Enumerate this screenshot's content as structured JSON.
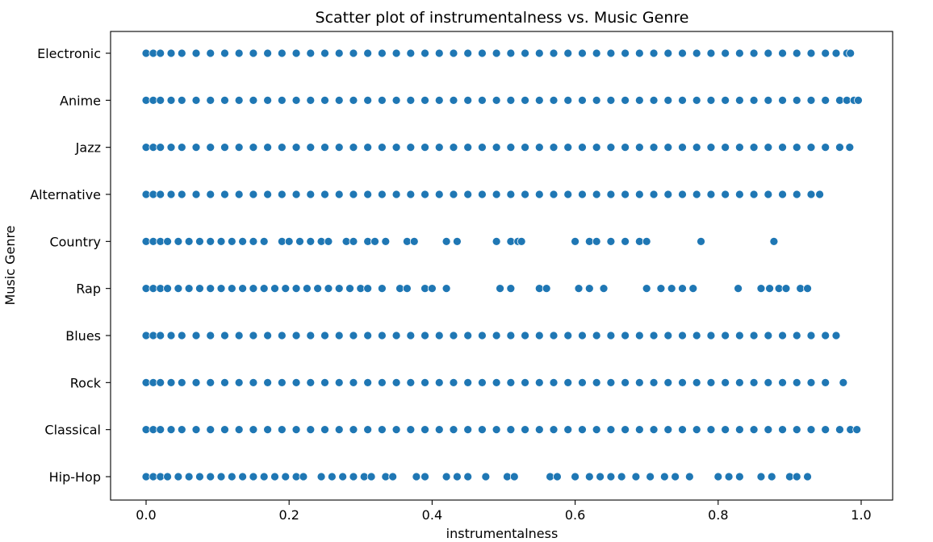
{
  "chart_data": {
    "type": "scatter",
    "title": "Scatter plot of instrumentalness vs. Music Genre",
    "xlabel": "instrumentalness",
    "ylabel": "Music Genre",
    "xlim": [
      -0.05,
      1.045
    ],
    "xticks": [
      0.0,
      0.2,
      0.4,
      0.6,
      0.8,
      1.0
    ],
    "xtick_labels": [
      "0.0",
      "0.2",
      "0.4",
      "0.6",
      "0.8",
      "1.0"
    ],
    "categories": [
      "Electronic",
      "Anime",
      "Jazz",
      "Alternative",
      "Country",
      "Rap",
      "Blues",
      "Rock",
      "Classical",
      "Hip-Hop"
    ],
    "grid": false,
    "legend": "none",
    "marker_color": "#1f77b4",
    "series": [
      {
        "category": "Electronic",
        "x": [
          0.0,
          0.01,
          0.02,
          0.035,
          0.05,
          0.07,
          0.09,
          0.11,
          0.13,
          0.15,
          0.17,
          0.19,
          0.21,
          0.23,
          0.25,
          0.27,
          0.29,
          0.31,
          0.33,
          0.35,
          0.37,
          0.39,
          0.41,
          0.43,
          0.45,
          0.47,
          0.49,
          0.51,
          0.53,
          0.55,
          0.57,
          0.59,
          0.61,
          0.63,
          0.65,
          0.67,
          0.69,
          0.71,
          0.73,
          0.75,
          0.77,
          0.79,
          0.81,
          0.83,
          0.85,
          0.87,
          0.89,
          0.91,
          0.93,
          0.95,
          0.965,
          0.98,
          0.985
        ]
      },
      {
        "category": "Anime",
        "x": [
          0.0,
          0.01,
          0.02,
          0.035,
          0.05,
          0.07,
          0.09,
          0.11,
          0.13,
          0.15,
          0.17,
          0.19,
          0.21,
          0.23,
          0.25,
          0.27,
          0.29,
          0.31,
          0.33,
          0.35,
          0.37,
          0.39,
          0.41,
          0.43,
          0.45,
          0.47,
          0.49,
          0.51,
          0.53,
          0.55,
          0.57,
          0.59,
          0.61,
          0.63,
          0.65,
          0.67,
          0.69,
          0.71,
          0.73,
          0.75,
          0.77,
          0.79,
          0.81,
          0.83,
          0.85,
          0.87,
          0.89,
          0.91,
          0.93,
          0.95,
          0.97,
          0.98,
          0.99,
          0.996
        ]
      },
      {
        "category": "Jazz",
        "x": [
          0.0,
          0.01,
          0.02,
          0.035,
          0.05,
          0.07,
          0.09,
          0.11,
          0.13,
          0.15,
          0.17,
          0.19,
          0.21,
          0.23,
          0.25,
          0.27,
          0.29,
          0.31,
          0.33,
          0.35,
          0.37,
          0.39,
          0.41,
          0.43,
          0.45,
          0.47,
          0.49,
          0.51,
          0.53,
          0.55,
          0.57,
          0.59,
          0.61,
          0.63,
          0.65,
          0.67,
          0.69,
          0.71,
          0.73,
          0.75,
          0.77,
          0.79,
          0.81,
          0.83,
          0.85,
          0.87,
          0.89,
          0.91,
          0.93,
          0.95,
          0.97,
          0.984
        ]
      },
      {
        "category": "Alternative",
        "x": [
          0.0,
          0.01,
          0.02,
          0.035,
          0.05,
          0.07,
          0.09,
          0.11,
          0.13,
          0.15,
          0.17,
          0.19,
          0.21,
          0.23,
          0.25,
          0.27,
          0.29,
          0.31,
          0.33,
          0.35,
          0.37,
          0.39,
          0.41,
          0.43,
          0.45,
          0.47,
          0.49,
          0.51,
          0.53,
          0.55,
          0.57,
          0.59,
          0.61,
          0.63,
          0.65,
          0.67,
          0.69,
          0.71,
          0.73,
          0.75,
          0.77,
          0.79,
          0.81,
          0.83,
          0.85,
          0.87,
          0.89,
          0.91,
          0.93,
          0.942
        ]
      },
      {
        "category": "Country",
        "x": [
          0.0,
          0.01,
          0.02,
          0.03,
          0.045,
          0.06,
          0.075,
          0.09,
          0.105,
          0.12,
          0.135,
          0.15,
          0.165,
          0.19,
          0.2,
          0.215,
          0.23,
          0.245,
          0.255,
          0.28,
          0.29,
          0.31,
          0.32,
          0.335,
          0.365,
          0.375,
          0.42,
          0.435,
          0.49,
          0.51,
          0.52,
          0.525,
          0.6,
          0.62,
          0.63,
          0.65,
          0.67,
          0.69,
          0.7,
          0.776,
          0.878
        ]
      },
      {
        "category": "Rap",
        "x": [
          0.0,
          0.01,
          0.02,
          0.03,
          0.045,
          0.06,
          0.075,
          0.09,
          0.105,
          0.12,
          0.135,
          0.15,
          0.165,
          0.18,
          0.195,
          0.21,
          0.225,
          0.24,
          0.255,
          0.27,
          0.285,
          0.3,
          0.31,
          0.33,
          0.355,
          0.365,
          0.39,
          0.4,
          0.42,
          0.495,
          0.51,
          0.55,
          0.56,
          0.605,
          0.62,
          0.64,
          0.7,
          0.72,
          0.735,
          0.75,
          0.765,
          0.828,
          0.86,
          0.872,
          0.885,
          0.895,
          0.915,
          0.925
        ]
      },
      {
        "category": "Blues",
        "x": [
          0.0,
          0.01,
          0.02,
          0.035,
          0.05,
          0.07,
          0.09,
          0.11,
          0.13,
          0.15,
          0.17,
          0.19,
          0.21,
          0.23,
          0.25,
          0.27,
          0.29,
          0.31,
          0.33,
          0.35,
          0.37,
          0.39,
          0.41,
          0.43,
          0.45,
          0.47,
          0.49,
          0.51,
          0.53,
          0.55,
          0.57,
          0.59,
          0.61,
          0.63,
          0.65,
          0.67,
          0.69,
          0.71,
          0.73,
          0.75,
          0.77,
          0.79,
          0.81,
          0.83,
          0.85,
          0.87,
          0.89,
          0.91,
          0.93,
          0.95,
          0.965
        ]
      },
      {
        "category": "Rock",
        "x": [
          0.0,
          0.01,
          0.02,
          0.035,
          0.05,
          0.07,
          0.09,
          0.11,
          0.13,
          0.15,
          0.17,
          0.19,
          0.21,
          0.23,
          0.25,
          0.27,
          0.29,
          0.31,
          0.33,
          0.35,
          0.37,
          0.39,
          0.41,
          0.43,
          0.45,
          0.47,
          0.49,
          0.51,
          0.53,
          0.55,
          0.57,
          0.59,
          0.61,
          0.63,
          0.65,
          0.67,
          0.69,
          0.71,
          0.73,
          0.75,
          0.77,
          0.79,
          0.81,
          0.83,
          0.85,
          0.87,
          0.89,
          0.91,
          0.93,
          0.95,
          0.975
        ]
      },
      {
        "category": "Classical",
        "x": [
          0.0,
          0.01,
          0.02,
          0.035,
          0.05,
          0.07,
          0.09,
          0.11,
          0.13,
          0.15,
          0.17,
          0.19,
          0.21,
          0.23,
          0.25,
          0.27,
          0.29,
          0.31,
          0.33,
          0.35,
          0.37,
          0.39,
          0.41,
          0.43,
          0.45,
          0.47,
          0.49,
          0.51,
          0.53,
          0.55,
          0.57,
          0.59,
          0.61,
          0.63,
          0.65,
          0.67,
          0.69,
          0.71,
          0.73,
          0.75,
          0.77,
          0.79,
          0.81,
          0.83,
          0.85,
          0.87,
          0.89,
          0.91,
          0.93,
          0.95,
          0.97,
          0.985,
          0.994
        ]
      },
      {
        "category": "Hip-Hop",
        "x": [
          0.0,
          0.01,
          0.02,
          0.03,
          0.045,
          0.06,
          0.075,
          0.09,
          0.105,
          0.12,
          0.135,
          0.15,
          0.165,
          0.18,
          0.195,
          0.21,
          0.22,
          0.245,
          0.26,
          0.275,
          0.29,
          0.305,
          0.315,
          0.335,
          0.345,
          0.378,
          0.39,
          0.42,
          0.435,
          0.45,
          0.475,
          0.505,
          0.515,
          0.565,
          0.575,
          0.6,
          0.62,
          0.635,
          0.65,
          0.665,
          0.685,
          0.705,
          0.725,
          0.74,
          0.76,
          0.8,
          0.815,
          0.83,
          0.86,
          0.875,
          0.9,
          0.91,
          0.925
        ]
      }
    ]
  }
}
